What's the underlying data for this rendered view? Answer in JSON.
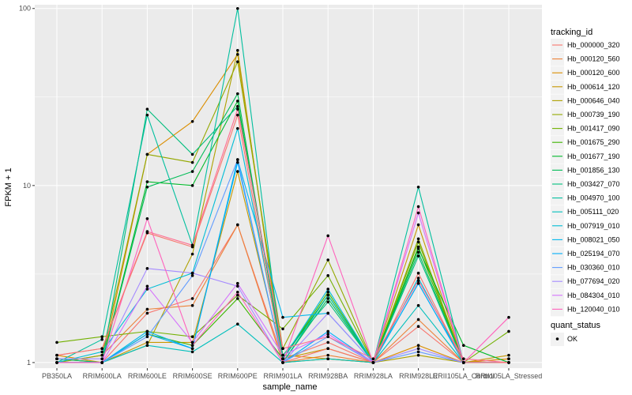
{
  "chart_data": {
    "type": "line",
    "xlabel": "sample_name",
    "ylabel": "FPKM + 1",
    "y_scale": "log10",
    "ylim": [
      0.93,
      105
    ],
    "y_ticks": [
      1,
      10,
      100
    ],
    "y_tick_labels": [
      "1",
      "10",
      "100"
    ],
    "grid": true,
    "legend_position": "right",
    "categories": [
      "PB350LA",
      "RRIM600LA",
      "RRIM600LE",
      "RRIM600SE",
      "RRIM600PE",
      "RRIM901LA",
      "RRIM928BA",
      "RRIM928LA",
      "RRIM928LE",
      "RRII105LA_Control",
      "RRII105LA_Stressed"
    ],
    "legend_color_title": "tracking_id",
    "legend_shape_title": "quant_status",
    "legend_shape_items": [
      "OK"
    ],
    "series": [
      {
        "name": "Hb_000000_320",
        "color": "#F8766D",
        "values": [
          1.05,
          1.0,
          1.9,
          2.3,
          6.0,
          1.05,
          1.3,
          1.0,
          1.6,
          1.0,
          1.05
        ]
      },
      {
        "name": "Hb_000120_560",
        "color": "#EC8239",
        "values": [
          1.0,
          1.1,
          2.0,
          2.1,
          6.0,
          1.0,
          1.1,
          1.0,
          1.75,
          1.0,
          1.0
        ]
      },
      {
        "name": "Hb_000120_600",
        "color": "#DB8E00",
        "values": [
          1.1,
          1.0,
          15.0,
          23.0,
          55.0,
          1.1,
          1.05,
          1.0,
          1.25,
          1.0,
          1.05
        ]
      },
      {
        "name": "Hb_000614_120",
        "color": "#C79800",
        "values": [
          1.05,
          1.0,
          1.3,
          1.3,
          12.0,
          1.05,
          1.2,
          1.0,
          6.0,
          1.0,
          1.1
        ]
      },
      {
        "name": "Hb_000646_040",
        "color": "#AFA100",
        "values": [
          1.0,
          1.0,
          1.25,
          4.1,
          58.0,
          1.0,
          1.05,
          1.0,
          1.1,
          1.0,
          1.0
        ]
      },
      {
        "name": "Hb_000739_190",
        "color": "#94A800",
        "values": [
          1.0,
          1.1,
          15.0,
          13.5,
          50.0,
          1.2,
          3.8,
          1.0,
          5.0,
          1.0,
          1.0
        ]
      },
      {
        "name": "Hb_001417_090",
        "color": "#72B000",
        "values": [
          1.3,
          1.4,
          1.5,
          1.4,
          2.4,
          1.55,
          3.1,
          1.0,
          4.8,
          1.0,
          1.5
        ]
      },
      {
        "name": "Hb_001675_290",
        "color": "#3CB500",
        "values": [
          1.0,
          1.0,
          1.45,
          1.25,
          2.3,
          1.05,
          2.5,
          1.0,
          4.5,
          1.0,
          1.0
        ]
      },
      {
        "name": "Hb_001677_190",
        "color": "#00B92A",
        "values": [
          1.0,
          1.0,
          10.5,
          10.0,
          30.0,
          1.05,
          2.4,
          1.0,
          4.4,
          1.25,
          1.0
        ]
      },
      {
        "name": "Hb_001856_130",
        "color": "#00BC56",
        "values": [
          1.0,
          1.0,
          9.8,
          12.0,
          33.0,
          1.0,
          2.3,
          1.0,
          4.2,
          1.0,
          1.0
        ]
      },
      {
        "name": "Hb_003427_070",
        "color": "#00BE7D",
        "values": [
          1.05,
          1.0,
          27.0,
          15.0,
          28.0,
          1.1,
          2.2,
          1.0,
          4.0,
          1.0,
          1.0
        ]
      },
      {
        "name": "Hb_004970_100",
        "color": "#00BF9E",
        "values": [
          1.0,
          1.35,
          25.0,
          4.6,
          100.0,
          1.0,
          2.4,
          1.0,
          9.8,
          1.0,
          1.0
        ]
      },
      {
        "name": "Hb_005111_020",
        "color": "#00BFBC",
        "values": [
          1.0,
          1.0,
          1.25,
          1.15,
          1.65,
          1.0,
          1.05,
          1.0,
          2.1,
          1.0,
          1.0
        ]
      },
      {
        "name": "Hb_007919_010",
        "color": "#00BDD6",
        "values": [
          1.0,
          1.15,
          2.6,
          3.2,
          21.0,
          1.05,
          2.6,
          1.0,
          3.0,
          1.0,
          1.0
        ]
      },
      {
        "name": "Hb_008021_050",
        "color": "#00B7EC",
        "values": [
          1.0,
          1.0,
          1.5,
          1.2,
          14.0,
          1.8,
          1.9,
          1.0,
          2.8,
          1.0,
          1.0
        ]
      },
      {
        "name": "Hb_025194_070",
        "color": "#00AEFA",
        "values": [
          1.0,
          1.0,
          1.45,
          1.2,
          13.5,
          1.0,
          1.5,
          1.0,
          2.8,
          1.0,
          1.0
        ]
      },
      {
        "name": "Hb_030360_010",
        "color": "#619CFF",
        "values": [
          1.0,
          1.0,
          1.4,
          3.1,
          14.0,
          1.0,
          1.4,
          1.0,
          1.15,
          1.0,
          1.0
        ]
      },
      {
        "name": "Hb_077694_020",
        "color": "#A58AFF",
        "values": [
          1.05,
          1.05,
          3.4,
          3.2,
          2.7,
          1.0,
          1.9,
          1.0,
          1.2,
          1.0,
          1.0
        ]
      },
      {
        "name": "Hb_084304_010",
        "color": "#D572FC",
        "values": [
          1.0,
          1.0,
          2.7,
          1.3,
          2.8,
          1.1,
          1.45,
          1.0,
          7.0,
          1.0,
          1.0
        ]
      },
      {
        "name": "Hb_120040_010",
        "color": "#FF62BC",
        "values": [
          1.0,
          1.0,
          6.5,
          1.25,
          2.5,
          1.0,
          5.2,
          1.0,
          7.6,
          1.0,
          1.8
        ]
      },
      {
        "name": "",
        "color": "#FF6C91",
        "values": [
          1.1,
          1.2,
          5.5,
          4.6,
          27.0,
          1.2,
          1.4,
          1.05,
          2.9,
          1.05,
          1.0
        ]
      },
      {
        "name": "",
        "color": "#F8766D",
        "values": [
          1.1,
          1.2,
          5.4,
          4.5,
          25.0,
          1.0,
          1.2,
          1.0,
          3.2,
          1.0,
          1.0
        ]
      }
    ],
    "legend_items": [
      "Hb_000000_320",
      "Hb_000120_560",
      "Hb_000120_600",
      "Hb_000614_120",
      "Hb_000646_040",
      "Hb_000739_190",
      "Hb_001417_090",
      "Hb_001675_290",
      "Hb_001677_190",
      "Hb_001856_130",
      "Hb_003427_070",
      "Hb_004970_100",
      "Hb_005111_020",
      "Hb_007919_010",
      "Hb_008021_050",
      "Hb_025194_070",
      "Hb_030360_010",
      "Hb_077694_020",
      "Hb_084304_010",
      "Hb_120040_010"
    ],
    "legend_colors": [
      "#F8766D",
      "#EC8239",
      "#DB8E00",
      "#C79800",
      "#AFA100",
      "#94A800",
      "#72B000",
      "#3CB500",
      "#00B92A",
      "#00BC56",
      "#00BE7D",
      "#00BF9E",
      "#00BFBC",
      "#00BDD6",
      "#00B7EC",
      "#00AEFA",
      "#619CFF",
      "#A58AFF",
      "#D572FC",
      "#FF62BC"
    ],
    "panel_background": "#EBEBEB",
    "grid_color": "#FFFFFF"
  }
}
